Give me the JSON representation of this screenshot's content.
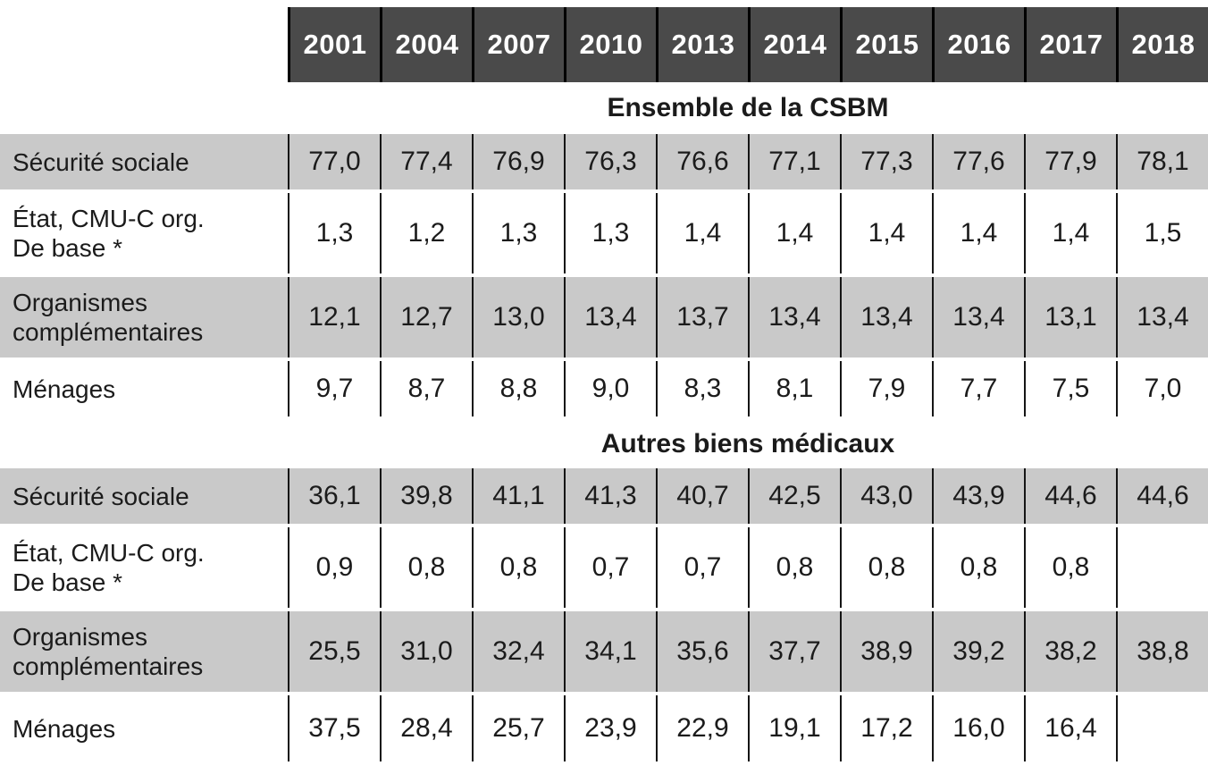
{
  "chart_data": {
    "type": "table",
    "columns": [
      "2001",
      "2004",
      "2007",
      "2010",
      "2013",
      "2014",
      "2015",
      "2016",
      "2017",
      "2018"
    ],
    "sections": [
      {
        "title": "Ensemble de la CSBM",
        "rows": [
          {
            "label": "Sécurité sociale",
            "values": [
              "77,0",
              "77,4",
              "76,9",
              "76,3",
              "76,6",
              "77,1",
              "77,3",
              "77,6",
              "77,9",
              "78,1"
            ]
          },
          {
            "label": "État, CMU-C org.\nDe base *",
            "values": [
              "1,3",
              "1,2",
              "1,3",
              "1,3",
              "1,4",
              "1,4",
              "1,4",
              "1,4",
              "1,4",
              "1,5"
            ]
          },
          {
            "label": "Organismes\ncomplémentaires",
            "values": [
              "12,1",
              "12,7",
              "13,0",
              "13,4",
              "13,7",
              "13,4",
              "13,4",
              "13,4",
              "13,1",
              "13,4"
            ]
          },
          {
            "label": "Ménages",
            "values": [
              "9,7",
              "8,7",
              "8,8",
              "9,0",
              "8,3",
              "8,1",
              "7,9",
              "7,7",
              "7,5",
              "7,0"
            ]
          }
        ]
      },
      {
        "title": "Autres biens médicaux",
        "rows": [
          {
            "label": "Sécurité sociale",
            "values": [
              "36,1",
              "39,8",
              "41,1",
              "41,3",
              "40,7",
              "42,5",
              "43,0",
              "43,9",
              "44,6",
              "44,6"
            ]
          },
          {
            "label": "État, CMU-C org.\nDe base *",
            "values": [
              "0,9",
              "0,8",
              "0,8",
              "0,7",
              "0,7",
              "0,8",
              "0,8",
              "0,8",
              "0,8",
              ""
            ]
          },
          {
            "label": "Organismes\ncomplémentaires",
            "values": [
              "25,5",
              "31,0",
              "32,4",
              "34,1",
              "35,6",
              "37,7",
              "38,9",
              "39,2",
              "38,2",
              "38,8"
            ]
          },
          {
            "label": "Ménages",
            "values": [
              "37,5",
              "28,4",
              "25,7",
              "23,9",
              "22,9",
              "19,1",
              "17,2",
              "16,0",
              "16,4",
              ""
            ]
          }
        ]
      }
    ]
  },
  "colors": {
    "header_bg": "#4a4a4a",
    "header_text": "#ffffff",
    "row_alt_bg": "#c9c9c9",
    "text": "#1b1b1b",
    "divider": "#151515"
  }
}
